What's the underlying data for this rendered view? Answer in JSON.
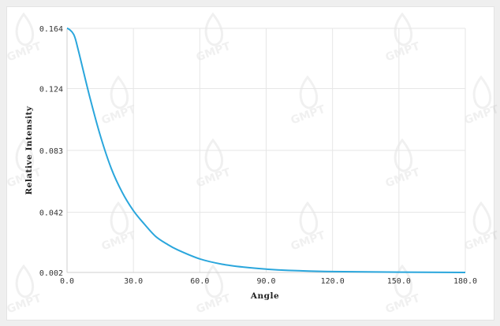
{
  "chart_data": {
    "type": "line",
    "xlabel": "Angle",
    "ylabel": "Relative Intensity",
    "xlim": [
      0,
      180
    ],
    "ylim": [
      0.002,
      0.164
    ],
    "x_ticks": [
      "0.0",
      "30.0",
      "60.0",
      "90.0",
      "120.0",
      "150.0",
      "180.0"
    ],
    "y_ticks": [
      "0.002",
      "0.042",
      "0.083",
      "0.124",
      "0.164"
    ],
    "grid": true,
    "series_color": "#2aa6dc",
    "series": [
      {
        "x": [
          0,
          3,
          5,
          10,
          15,
          20,
          25,
          30,
          35,
          40,
          45,
          50,
          60,
          70,
          80,
          90,
          100,
          120,
          150,
          180
        ],
        "y": [
          0.164,
          0.16,
          0.15,
          0.12,
          0.093,
          0.071,
          0.055,
          0.043,
          0.034,
          0.026,
          0.021,
          0.017,
          0.011,
          0.0075,
          0.0055,
          0.0042,
          0.0034,
          0.0026,
          0.0022,
          0.002
        ]
      }
    ]
  },
  "watermark": "GMPT"
}
